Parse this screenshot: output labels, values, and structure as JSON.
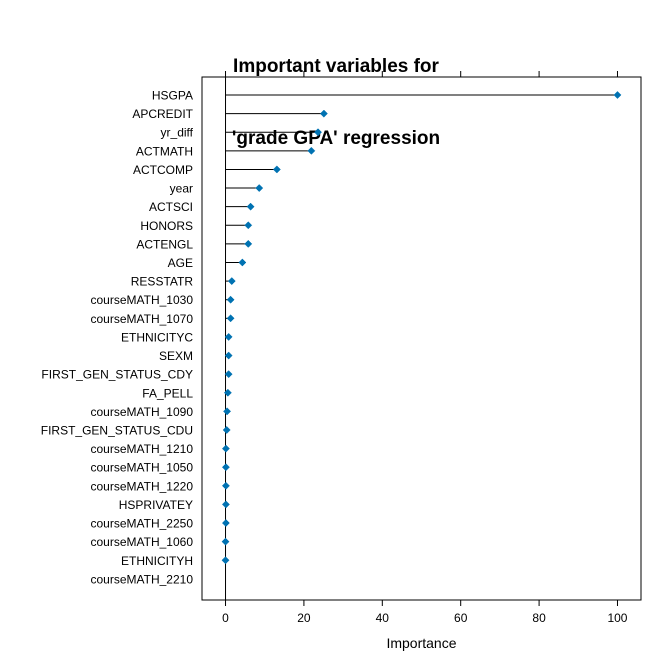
{
  "chart_data": {
    "type": "dotplot",
    "title_lines": [
      "Important variables for",
      "'grade GPA' regression"
    ],
    "xlabel": "Importance",
    "ylabel": "",
    "xlim": [
      -6,
      106
    ],
    "xticks": [
      0,
      20,
      40,
      60,
      80,
      100
    ],
    "grid": false,
    "legend": "none",
    "colors": {
      "point": "#0072B2",
      "line": "#000000",
      "frame": "#000000"
    },
    "categories": [
      "HSGPA",
      "APCREDIT",
      "yr_diff",
      "ACTMATH",
      "ACTCOMP",
      "year",
      "ACTSCI",
      "HONORS",
      "ACTENGL",
      "AGE",
      "RESSTATR",
      "courseMATH_1030",
      "courseMATH_1070",
      "ETHNICITYC",
      "SEXM",
      "FIRST_GEN_STATUS_CDY",
      "FA_PELL",
      "courseMATH_1090",
      "FIRST_GEN_STATUS_CDU",
      "courseMATH_1210",
      "courseMATH_1050",
      "courseMATH_1220",
      "HSPRIVATEY",
      "courseMATH_2250",
      "courseMATH_1060",
      "ETHNICITYH",
      "courseMATH_2210"
    ],
    "values": [
      100,
      25.1,
      23.6,
      21.9,
      13.1,
      8.6,
      6.4,
      5.8,
      5.8,
      4.3,
      1.6,
      1.3,
      1.3,
      0.8,
      0.8,
      0.8,
      0.6,
      0.4,
      0.3,
      0.1,
      0.1,
      0.1,
      0.1,
      0.1,
      0.0,
      0.0,
      null
    ]
  }
}
